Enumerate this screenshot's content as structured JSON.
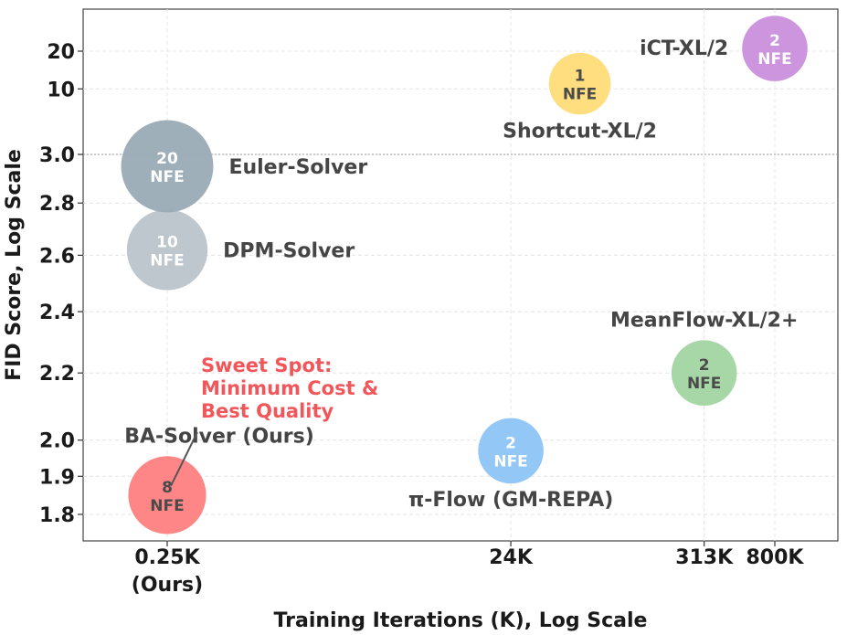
{
  "chart_data": {
    "type": "scatter",
    "xlabel": "Training Iterations (K), Log Scale",
    "ylabel": "FID Score, Log Scale",
    "x_scale": "log",
    "y_scale": "log (piecewise, break above 3.0)",
    "grid": true,
    "x_ticks": [
      {
        "value": 0.25,
        "label": "0.25K",
        "sublabel": "(Ours)"
      },
      {
        "value": 24,
        "label": "24K"
      },
      {
        "value": 313,
        "label": "313K"
      },
      {
        "value": 800,
        "label": "800K"
      }
    ],
    "y_ticks": [
      {
        "value": 1.8,
        "label": "1.8"
      },
      {
        "value": 1.9,
        "label": "1.9"
      },
      {
        "value": 2.0,
        "label": "2.0"
      },
      {
        "value": 2.2,
        "label": "2.2"
      },
      {
        "value": 2.4,
        "label": "2.4"
      },
      {
        "value": 2.6,
        "label": "2.6"
      },
      {
        "value": 2.8,
        "label": "2.8"
      },
      {
        "value": 3.0,
        "label": "3.0"
      },
      {
        "value": 10,
        "label": "10"
      },
      {
        "value": 20,
        "label": "20"
      }
    ],
    "points": [
      {
        "name": "BA-Solver (Ours)",
        "x": 0.25,
        "y": 1.85,
        "nfe": 8,
        "nfe_text": "8",
        "nfe_unit": "NFE",
        "color": "#ff8080",
        "text_color": "#4a4a4a",
        "label_pos": "above"
      },
      {
        "name": "DPM-Solver",
        "x": 0.25,
        "y": 2.62,
        "nfe": 10,
        "nfe_text": "10",
        "nfe_unit": "NFE",
        "color": "#b9c4ca",
        "text_color": "#ffffff",
        "label_pos": "right"
      },
      {
        "name": "Euler-Solver",
        "x": 0.25,
        "y": 2.95,
        "nfe": 20,
        "nfe_text": "20",
        "nfe_unit": "NFE",
        "color": "#9aabb6",
        "text_color": "#ffffff",
        "label_pos": "right"
      },
      {
        "name": "π-Flow (GM-REPA)",
        "x": 24,
        "y": 1.97,
        "nfe": 2,
        "nfe_text": "2",
        "nfe_unit": "NFE",
        "color": "#8cc4f5",
        "text_color": "#ffffff",
        "label_pos": "below"
      },
      {
        "name": "Shortcut-XL/2",
        "x": 60,
        "y": 11,
        "nfe": 1,
        "nfe_text": "1",
        "nfe_unit": "NFE",
        "color": "#ffdc78",
        "text_color": "#4a4a4a",
        "label_pos": "below"
      },
      {
        "name": "MeanFlow-XL/2+",
        "x": 313,
        "y": 2.2,
        "nfe": 2,
        "nfe_text": "2",
        "nfe_unit": "NFE",
        "color": "#a2d4a2",
        "text_color": "#4a4a4a",
        "label_pos": "above"
      },
      {
        "name": "iCT-XL/2",
        "x": 800,
        "y": 21,
        "nfe": 2,
        "nfe_text": "2",
        "nfe_unit": "NFE",
        "color": "#c98fdb",
        "text_color": "#ffffff",
        "label_pos": "left"
      }
    ],
    "annotation": {
      "lines": [
        "Sweet Spot:",
        "Minimum Cost &",
        "Best Quality"
      ],
      "color": "#f2565a",
      "points_to": "BA-Solver (Ours)"
    },
    "reference_line": {
      "y": 3.0,
      "style": "dotted"
    }
  }
}
